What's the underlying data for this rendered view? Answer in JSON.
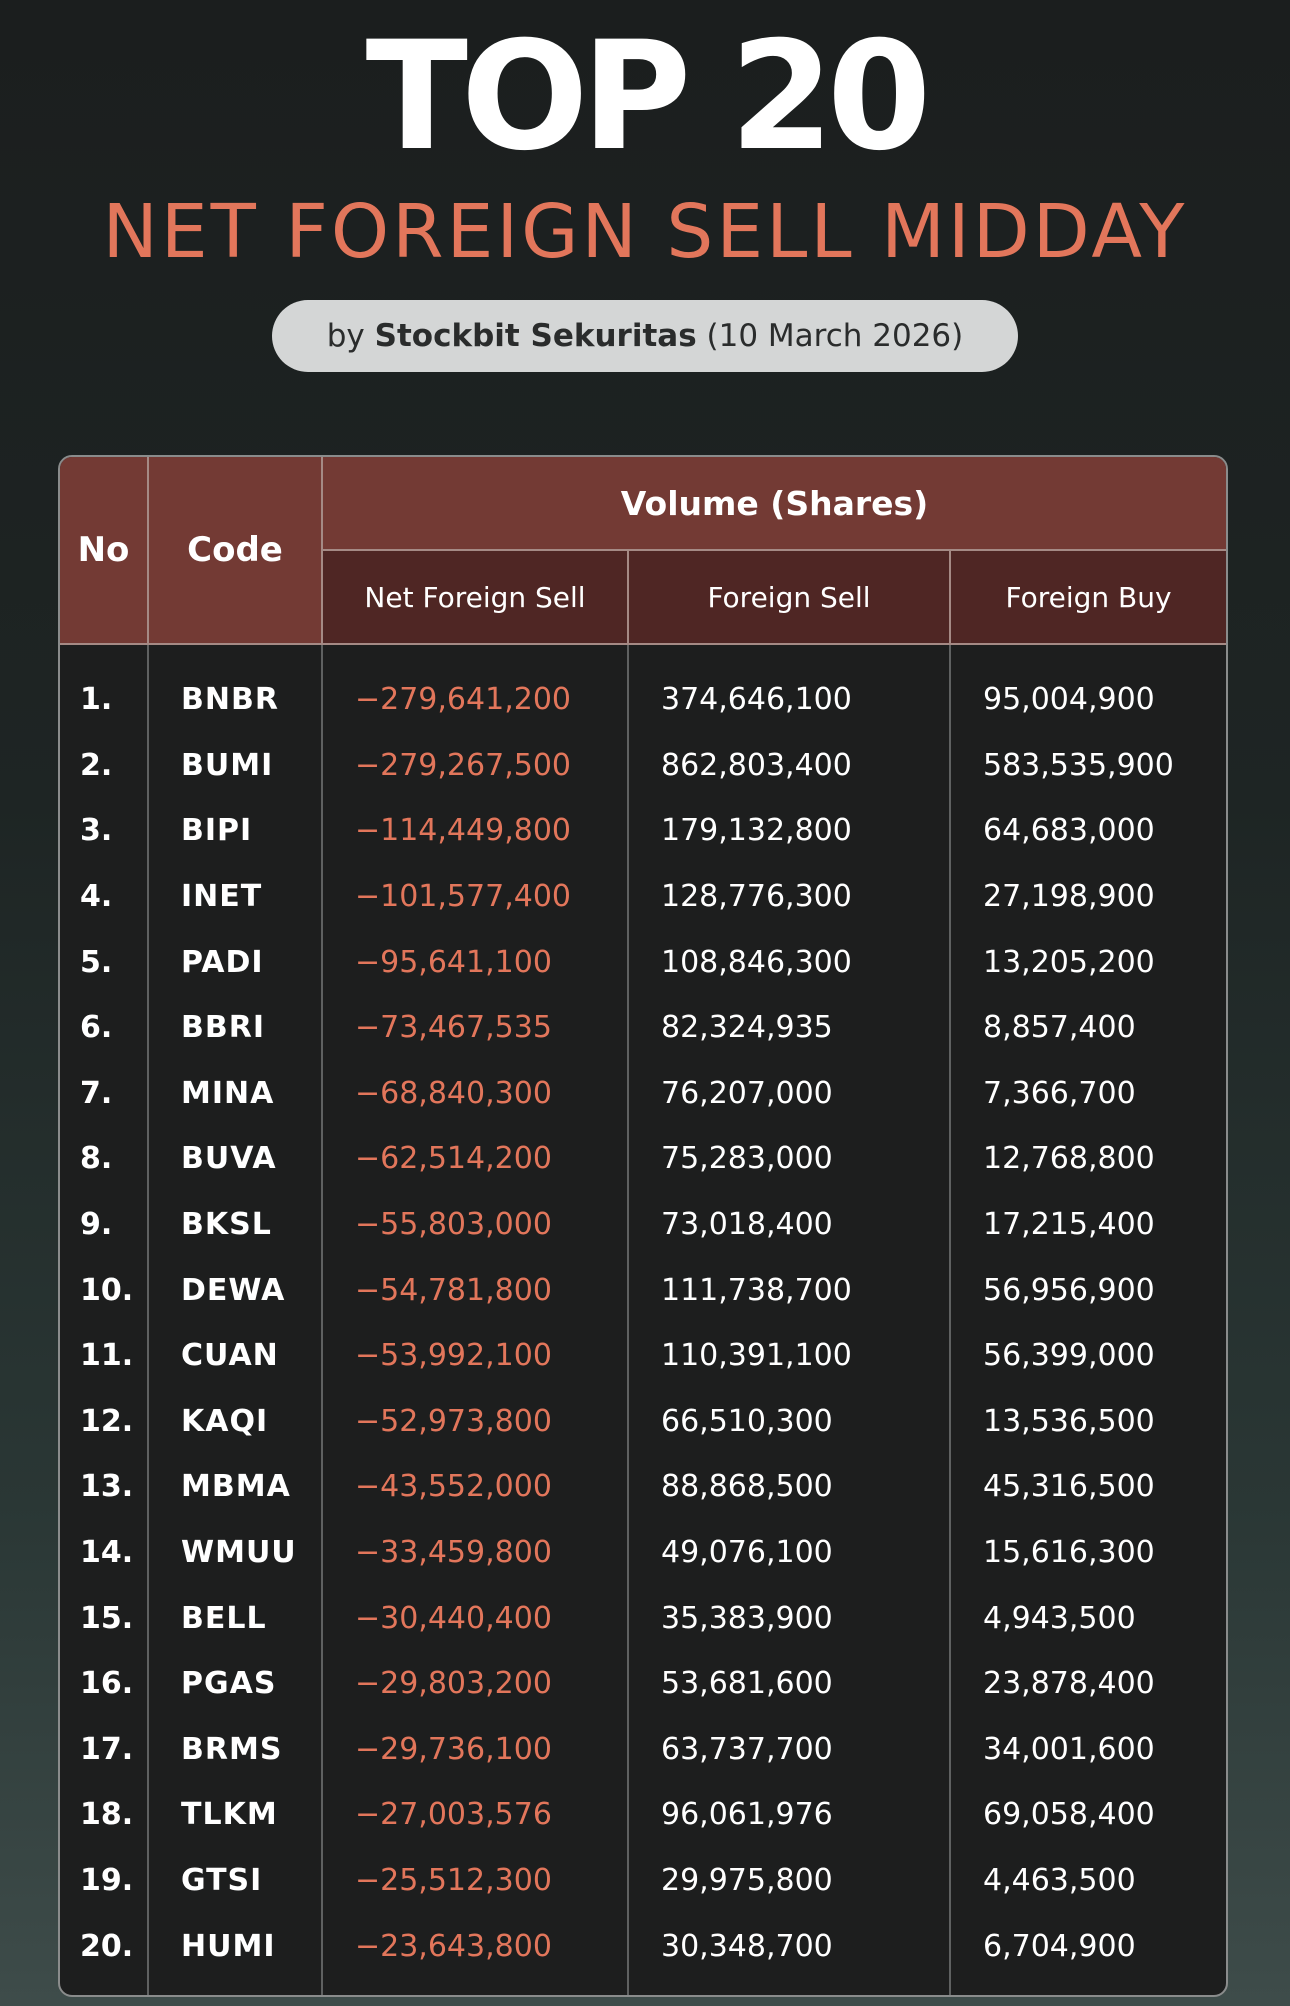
{
  "header": {
    "title": "TOP 20",
    "subtitle": "NET FOREIGN SELL MIDDAY",
    "byline_prefix": "by",
    "byline_brand": "Stockbit Sekuritas",
    "byline_date": "(10 March 2026)"
  },
  "table": {
    "col_no": "No",
    "col_code": "Code",
    "group_label": "Volume (Shares)",
    "col_net": "Net Foreign Sell",
    "col_sell": "Foreign Sell",
    "col_buy": "Foreign Buy",
    "rows": [
      {
        "no": "1.",
        "code": "BNBR",
        "net": "−279,641,200",
        "sell": "374,646,100",
        "buy": "95,004,900"
      },
      {
        "no": "2.",
        "code": "BUMI",
        "net": "−279,267,500",
        "sell": "862,803,400",
        "buy": "583,535,900"
      },
      {
        "no": "3.",
        "code": "BIPI",
        "net": "−114,449,800",
        "sell": "179,132,800",
        "buy": "64,683,000"
      },
      {
        "no": "4.",
        "code": "INET",
        "net": "−101,577,400",
        "sell": "128,776,300",
        "buy": "27,198,900"
      },
      {
        "no": "5.",
        "code": "PADI",
        "net": "−95,641,100",
        "sell": "108,846,300",
        "buy": "13,205,200"
      },
      {
        "no": "6.",
        "code": "BBRI",
        "net": "−73,467,535",
        "sell": "82,324,935",
        "buy": "8,857,400"
      },
      {
        "no": "7.",
        "code": "MINA",
        "net": "−68,840,300",
        "sell": "76,207,000",
        "buy": "7,366,700"
      },
      {
        "no": "8.",
        "code": "BUVA",
        "net": "−62,514,200",
        "sell": "75,283,000",
        "buy": "12,768,800"
      },
      {
        "no": "9.",
        "code": "BKSL",
        "net": "−55,803,000",
        "sell": "73,018,400",
        "buy": "17,215,400"
      },
      {
        "no": "10.",
        "code": "DEWA",
        "net": "−54,781,800",
        "sell": "111,738,700",
        "buy": "56,956,900"
      },
      {
        "no": "11.",
        "code": "CUAN",
        "net": "−53,992,100",
        "sell": "110,391,100",
        "buy": "56,399,000"
      },
      {
        "no": "12.",
        "code": "KAQI",
        "net": "−52,973,800",
        "sell": "66,510,300",
        "buy": "13,536,500"
      },
      {
        "no": "13.",
        "code": "MBMA",
        "net": "−43,552,000",
        "sell": "88,868,500",
        "buy": "45,316,500"
      },
      {
        "no": "14.",
        "code": "WMUU",
        "net": "−33,459,800",
        "sell": "49,076,100",
        "buy": "15,616,300"
      },
      {
        "no": "15.",
        "code": "BELL",
        "net": "−30,440,400",
        "sell": "35,383,900",
        "buy": "4,943,500"
      },
      {
        "no": "16.",
        "code": "PGAS",
        "net": "−29,803,200",
        "sell": "53,681,600",
        "buy": "23,878,400"
      },
      {
        "no": "17.",
        "code": "BRMS",
        "net": "−29,736,100",
        "sell": "63,737,700",
        "buy": "34,001,600"
      },
      {
        "no": "18.",
        "code": "TLKM",
        "net": "−27,003,576",
        "sell": "96,061,976",
        "buy": "69,058,400"
      },
      {
        "no": "19.",
        "code": "GTSI",
        "net": "−25,512,300",
        "sell": "29,975,800",
        "buy": "4,463,500"
      },
      {
        "no": "20.",
        "code": "HUMI",
        "net": "−23,643,800",
        "sell": "30,348,700",
        "buy": "6,704,900"
      }
    ]
  },
  "colors": {
    "header_bg": "#733a34",
    "subheader_bg": "#4f2624",
    "accent_negative": "#e2765b",
    "table_bg": "#1d1e1e"
  }
}
